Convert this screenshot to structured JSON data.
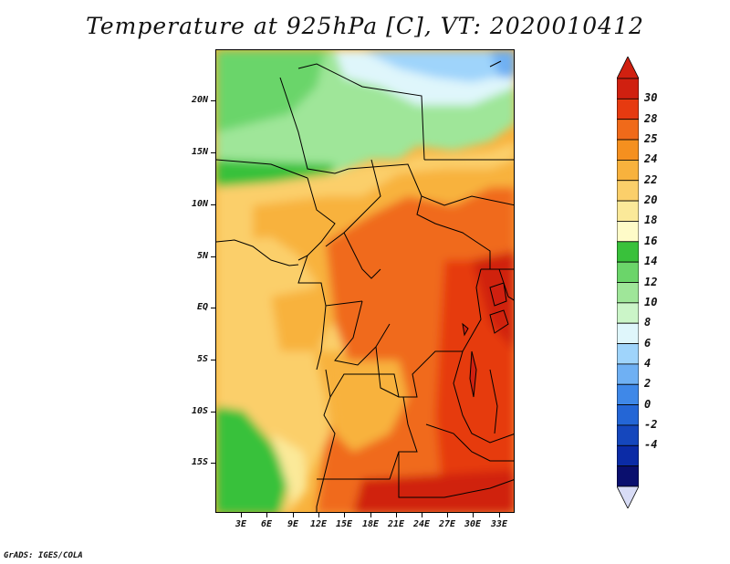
{
  "title": "Temperature at 925hPa [C], VT: 2020010412",
  "credit": "GrADS: IGES/COLA",
  "lat_labels": [
    "20N",
    "15N",
    "10N",
    "5N",
    "EQ",
    "5S",
    "10S",
    "15S"
  ],
  "lon_labels": [
    "3E",
    "6E",
    "9E",
    "12E",
    "15E",
    "18E",
    "21E",
    "24E",
    "27E",
    "30E",
    "33E"
  ],
  "colorbar": {
    "labels": [
      "30",
      "28",
      "25",
      "24",
      "22",
      "20",
      "18",
      "16",
      "14",
      "12",
      "10",
      "8",
      "6",
      "4",
      "2",
      "0",
      "-2",
      "-4"
    ],
    "colors": [
      "#d02010",
      "#e63a10",
      "#f06a1a",
      "#f5901f",
      "#f8b23d",
      "#fbcf6a",
      "#fbe999",
      "#fefbc8",
      "#39c13b",
      "#6bd56a",
      "#9fe699",
      "#cbf5c8",
      "#dff6fb",
      "#9fd4fb",
      "#6fb0f3",
      "#3f88e8",
      "#2466d6",
      "#1547bd",
      "#0b2ba6",
      "#0a0f6e"
    ],
    "top_color": "#d02010",
    "bottom_color": "#d8dcf6"
  }
}
